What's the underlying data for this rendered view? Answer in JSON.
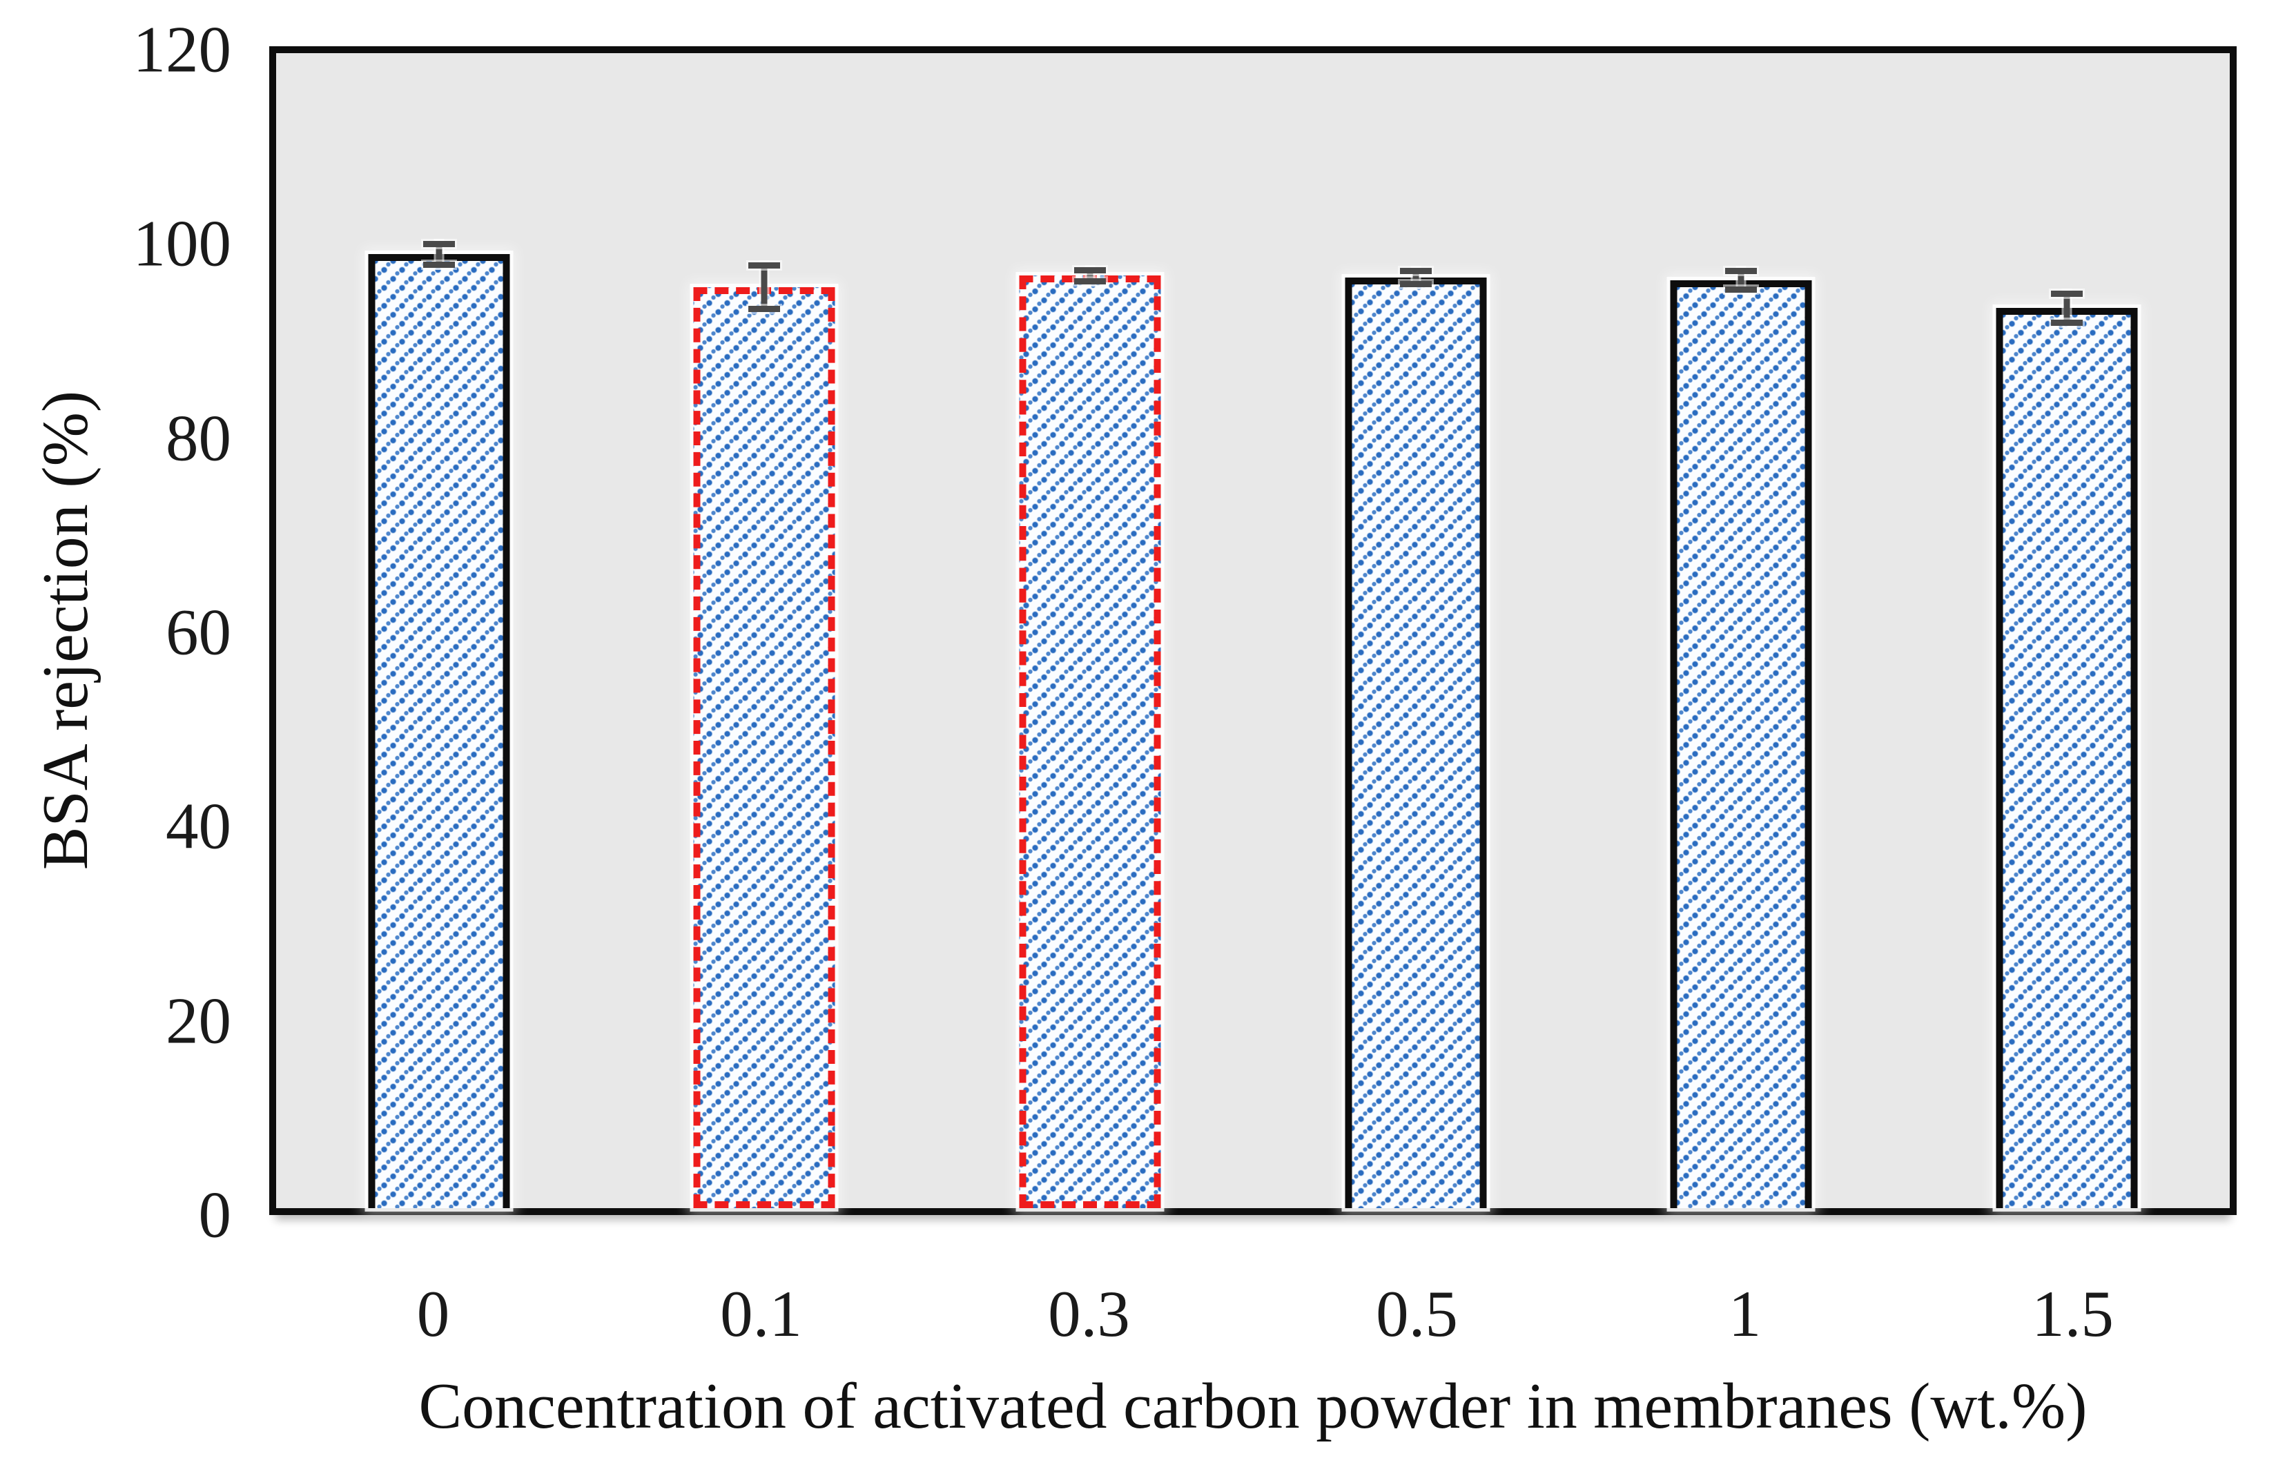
{
  "chart_data": {
    "type": "bar",
    "title": "",
    "xlabel": "Concentration of activated carbon powder in membranes (wt.%)",
    "ylabel": "BSA rejection (%)",
    "categories": [
      "0",
      "0.1",
      "0.3",
      "0.5",
      "1",
      "1.5"
    ],
    "values": [
      99.1,
      95.7,
      96.9,
      96.7,
      96.4,
      93.5
    ],
    "error_bars": [
      1.4,
      2.6,
      0.9,
      1.0,
      1.3,
      1.8
    ],
    "bar_border_styles": [
      "solid",
      "dashed",
      "dashed",
      "solid",
      "solid",
      "solid"
    ],
    "highlighted_categories": [
      "0.1",
      "0.3"
    ],
    "ylim": [
      0,
      120
    ],
    "yticks": [
      0,
      20,
      40,
      60,
      80,
      100,
      120
    ],
    "grid": "off",
    "legend": "none",
    "colors": {
      "plot_background": "#e8e8e8",
      "bar_dot_fill": "#2a6cc0",
      "bar_fill_background": "#fbfdff",
      "solid_border": "#0d0d0d",
      "dashed_border": "#ee1c1c",
      "error_bar": "#4a4a4a",
      "axis_frame": "#0d0d0d"
    }
  }
}
